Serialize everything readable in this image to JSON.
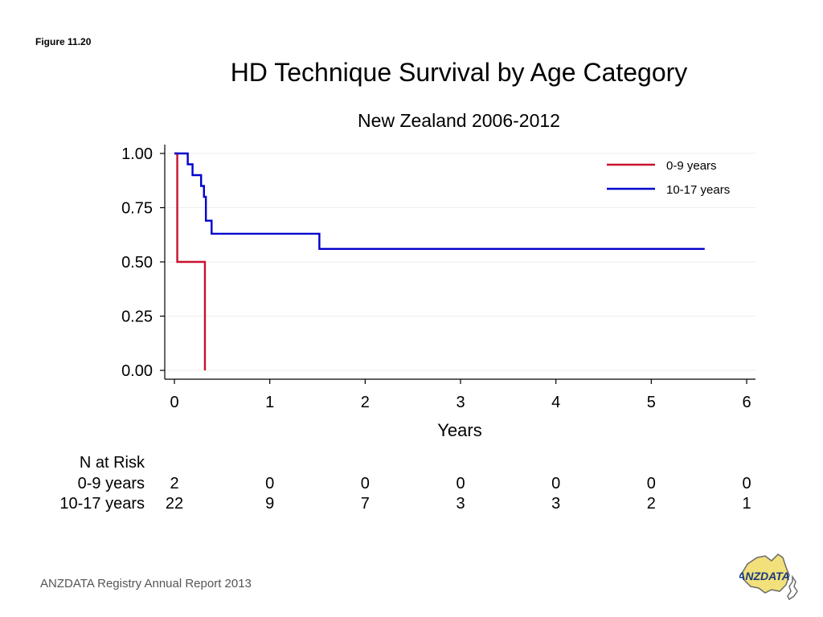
{
  "figure_label": "Figure 11.20",
  "footer": "ANZDATA Registry Annual Report 2013",
  "logo_text": "ANZDATA",
  "colors": {
    "series_0_9": "#c8102e",
    "series_10_17": "#0000cc",
    "axis": "#000000",
    "grid": "#eeeeee"
  },
  "chart_data": {
    "type": "line",
    "title": "HD Technique Survival by Age Category",
    "subtitle": "New Zealand 2006-2012",
    "xlabel": "Years",
    "ylabel": "",
    "xlim": [
      0,
      6
    ],
    "ylim": [
      0,
      1
    ],
    "x_ticks": [
      0,
      1,
      2,
      3,
      4,
      5,
      6
    ],
    "x_tick_labels": [
      "0",
      "1",
      "2",
      "3",
      "4",
      "5",
      "6"
    ],
    "y_ticks": [
      0,
      0.25,
      0.5,
      0.75,
      1.0
    ],
    "y_tick_labels": [
      "0.00",
      "0.25",
      "0.50",
      "0.75",
      "1.00"
    ],
    "grid": true,
    "legend_position": "top-right",
    "step": true,
    "series": [
      {
        "name": "0-9 years",
        "color": "#c8102e",
        "x": [
          0,
          0.03,
          0.32,
          0.32
        ],
        "y": [
          1.0,
          0.5,
          0.5,
          0.0
        ]
      },
      {
        "name": "10-17 years",
        "color": "#0000cc",
        "x": [
          0,
          0.14,
          0.19,
          0.28,
          0.31,
          0.33,
          0.39,
          1.52,
          5.56
        ],
        "y": [
          1.0,
          0.95,
          0.9,
          0.85,
          0.8,
          0.69,
          0.63,
          0.56,
          0.56
        ]
      }
    ]
  },
  "risk_table": {
    "heading": "N at Risk",
    "times": [
      0,
      1,
      2,
      3,
      4,
      5,
      6
    ],
    "rows": [
      {
        "label": "0-9 years",
        "values": [
          "2",
          "0",
          "0",
          "0",
          "0",
          "0",
          "0"
        ]
      },
      {
        "label": "10-17 years",
        "values": [
          "22",
          "9",
          "7",
          "3",
          "3",
          "2",
          "1"
        ]
      }
    ]
  }
}
